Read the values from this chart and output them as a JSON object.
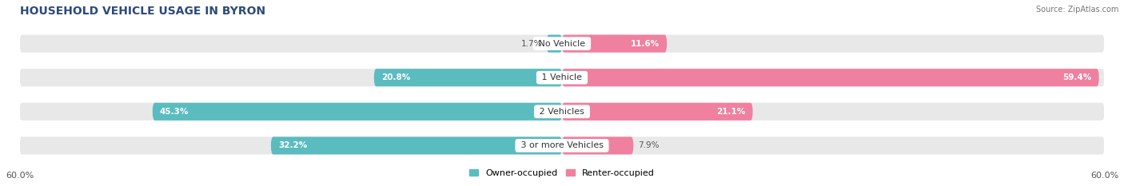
{
  "title": "HOUSEHOLD VEHICLE USAGE IN BYRON",
  "source": "Source: ZipAtlas.com",
  "categories": [
    "No Vehicle",
    "1 Vehicle",
    "2 Vehicles",
    "3 or more Vehicles"
  ],
  "owner_values": [
    1.7,
    20.8,
    45.3,
    32.2
  ],
  "renter_values": [
    11.6,
    59.4,
    21.1,
    7.9
  ],
  "owner_color": "#5bbcbf",
  "renter_color": "#f080a0",
  "background_color": "#ffffff",
  "bar_background_color": "#e8e8e8",
  "xlim": [
    -60,
    60
  ],
  "xtick_labels": [
    "60.0%",
    "60.0%"
  ],
  "legend_owner": "Owner-occupied",
  "legend_renter": "Renter-occupied",
  "title_fontsize": 10,
  "bar_height": 0.52,
  "figsize": [
    14.06,
    2.33
  ],
  "dpi": 100
}
